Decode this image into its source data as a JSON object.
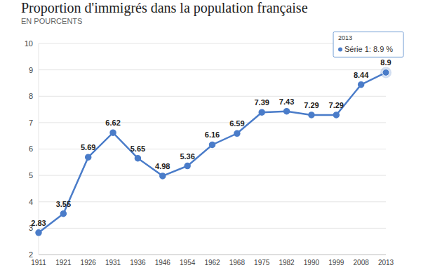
{
  "chart_data": {
    "type": "line",
    "title": "Proportion d'immigrés dans la population française",
    "subtitle": "EN POURCENTS",
    "categories": [
      "1911",
      "1921",
      "1926",
      "1931",
      "1936",
      "1946",
      "1954",
      "1962",
      "1968",
      "1975",
      "1982",
      "1990",
      "1999",
      "2008",
      "2013"
    ],
    "series": [
      {
        "name": "Série 1",
        "color": "#4a7cc9",
        "marker": "circle",
        "values": [
          2.83,
          3.55,
          5.69,
          6.62,
          5.65,
          4.98,
          5.36,
          6.16,
          6.59,
          7.39,
          7.43,
          7.29,
          7.29,
          8.44,
          8.9
        ]
      }
    ],
    "ylim": [
      2,
      10
    ],
    "yticks": [
      2,
      3,
      4,
      5,
      6,
      7,
      8,
      9,
      10
    ],
    "grid": true,
    "data_labels": true,
    "annotations": [
      {
        "category": "2013",
        "title": "2013",
        "text": "Série 1: 8.9 %"
      }
    ]
  }
}
